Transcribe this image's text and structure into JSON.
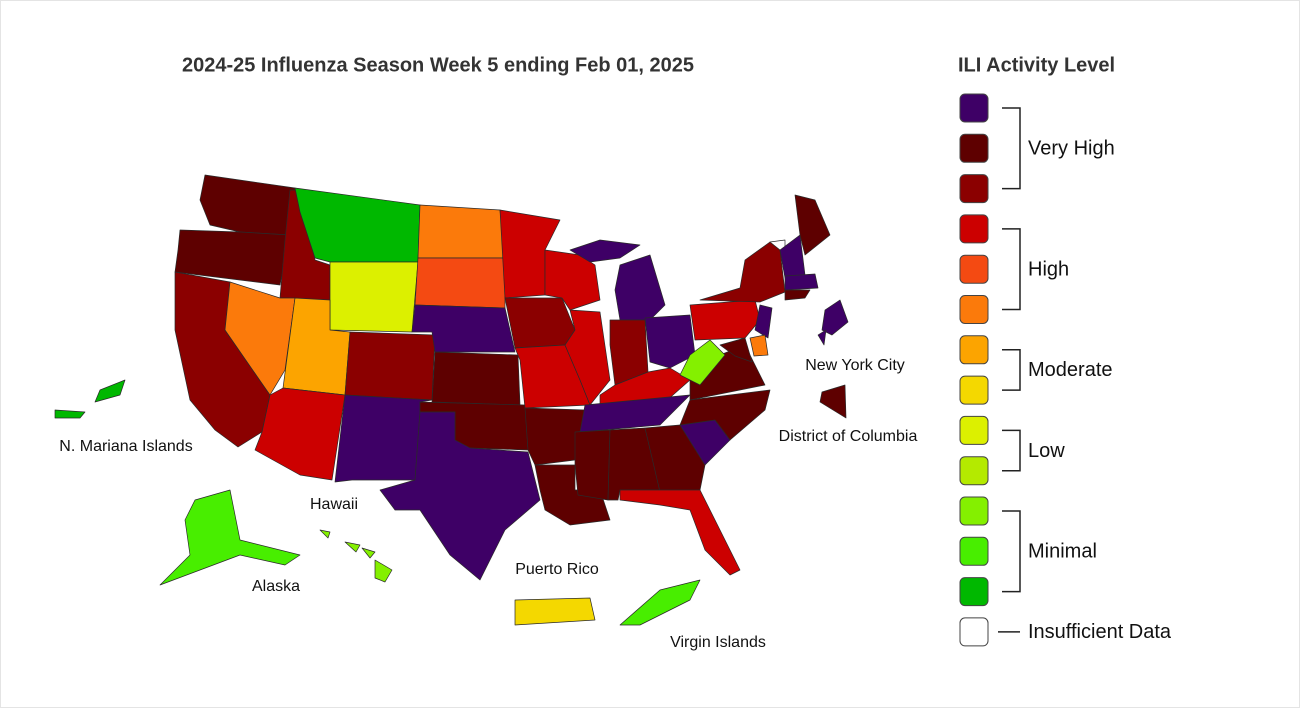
{
  "title": "2024-25 Influenza Season Week 5 ending Feb 01, 2025",
  "legend": {
    "title": "ILI Activity Level",
    "groups": [
      {
        "label": "Very High",
        "colors": [
          "#3e0066",
          "#5e0000",
          "#8b0000"
        ]
      },
      {
        "label": "High",
        "colors": [
          "#cc0000",
          "#f44a12",
          "#fb7a0b"
        ]
      },
      {
        "label": "Moderate",
        "colors": [
          "#fca400",
          "#f4d800"
        ]
      },
      {
        "label": "Low",
        "colors": [
          "#dcf000",
          "#b4ea00"
        ]
      },
      {
        "label": "Minimal",
        "colors": [
          "#84f000",
          "#48ee00",
          "#00b800"
        ]
      },
      {
        "label": "Insufficient Data",
        "colors": [
          "#ffffff"
        ]
      }
    ]
  },
  "labels": [
    "N. Mariana Islands",
    "Hawaii",
    "Alaska",
    "Puerto Rico",
    "Virgin Islands",
    "New York City",
    "District of Columbia"
  ]
}
